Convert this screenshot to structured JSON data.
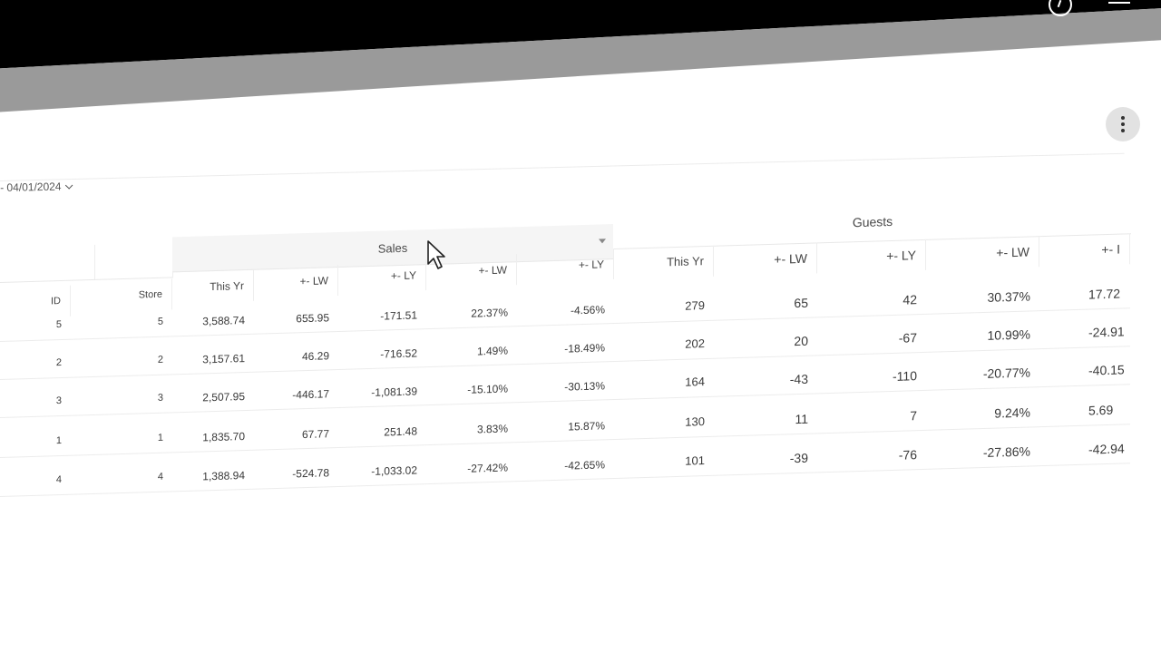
{
  "date_range": "- 04/01/2024",
  "group_headers": {
    "sales": "Sales",
    "guests": "Guests"
  },
  "columns": [
    "ID",
    "Store",
    "This Yr",
    "+- LW",
    "+- LY",
    "+- LW",
    "+- LY",
    "This Yr",
    "+- LW",
    "+- LY",
    "+- LW",
    "+- I"
  ],
  "rows": [
    [
      "5",
      "5",
      "3,588.74",
      "655.95",
      "-171.51",
      "22.37%",
      "-4.56%",
      "279",
      "65",
      "42",
      "30.37%",
      "17.72"
    ],
    [
      "2",
      "2",
      "3,157.61",
      "46.29",
      "-716.52",
      "1.49%",
      "-18.49%",
      "202",
      "20",
      "-67",
      "10.99%",
      "-24.91"
    ],
    [
      "3",
      "3",
      "2,507.95",
      "-446.17",
      "-1,081.39",
      "-15.10%",
      "-30.13%",
      "164",
      "-43",
      "-110",
      "-20.77%",
      "-40.15"
    ],
    [
      "1",
      "1",
      "1,835.70",
      "67.77",
      "251.48",
      "3.83%",
      "15.87%",
      "130",
      "11",
      "7",
      "9.24%",
      "5.69"
    ],
    [
      "4",
      "4",
      "1,388.94",
      "-524.78",
      "-1,033.02",
      "-27.42%",
      "-42.65%",
      "101",
      "-39",
      "-76",
      "-27.86%",
      "-42.94"
    ]
  ],
  "icons": {
    "help": "help-circle-icon",
    "more": "more-vertical-icon",
    "cursor": "mouse-pointer-icon",
    "sort": "sort-caret-icon"
  }
}
